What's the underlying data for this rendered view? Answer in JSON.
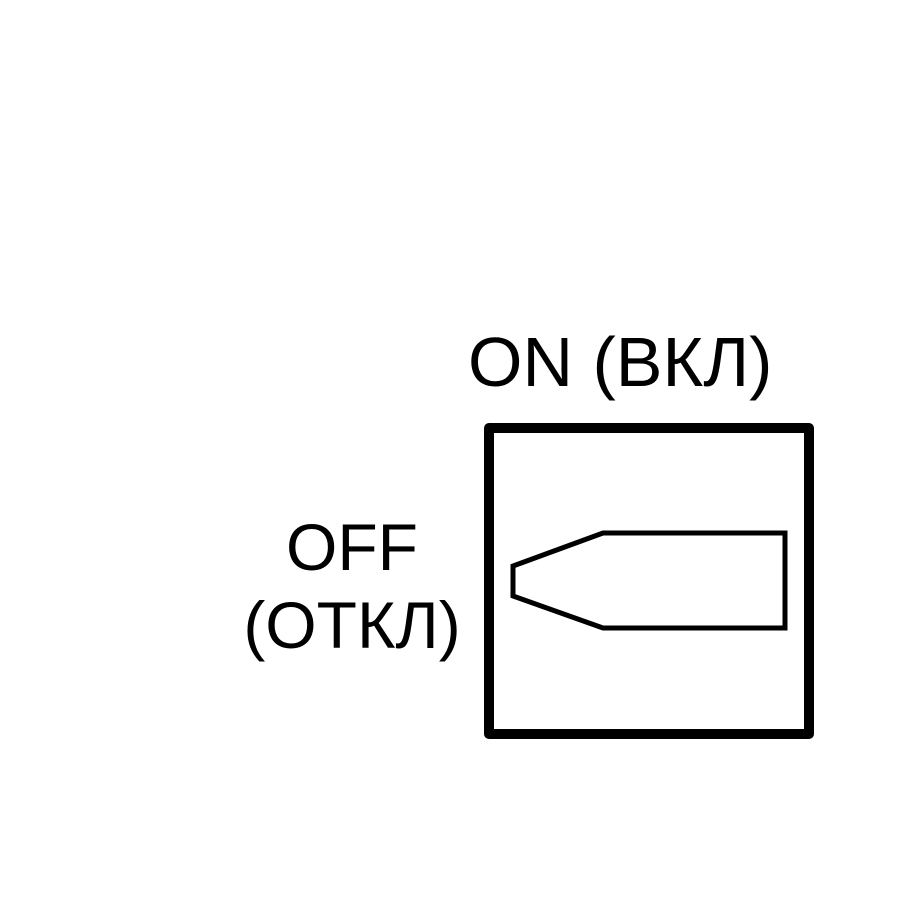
{
  "switch": {
    "on_label": "ON (ВКЛ)",
    "off_label_line1": "OFF",
    "off_label_line2": "(ОТКЛ)",
    "handle_icon": "rotary-knob-pointer-icon",
    "state": "off"
  },
  "colors": {
    "stroke": "#000000",
    "background": "#ffffff"
  }
}
